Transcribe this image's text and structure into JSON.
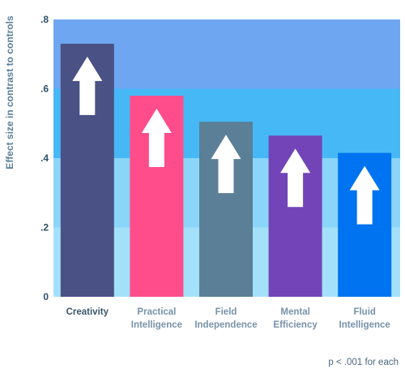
{
  "chart_data": {
    "type": "bar",
    "ylabel": "Effect size in contrast to controls",
    "ylim": [
      0,
      0.8
    ],
    "yticks": [
      {
        "value": 0,
        "label": "0"
      },
      {
        "value": 0.2,
        "label": ".2"
      },
      {
        "value": 0.4,
        "label": ".4"
      },
      {
        "value": 0.6,
        "label": ".6"
      },
      {
        "value": 0.8,
        "label": ".8"
      }
    ],
    "categories": [
      {
        "lines": [
          "Creativity"
        ],
        "value": 0.73,
        "color": "#4a5185"
      },
      {
        "lines": [
          "Practical",
          "Intelligence"
        ],
        "value": 0.58,
        "color": "#ff4d8b"
      },
      {
        "lines": [
          "Field",
          "Independence"
        ],
        "value": 0.505,
        "color": "#5b7f96"
      },
      {
        "lines": [
          "Mental",
          "Efficiency"
        ],
        "value": 0.465,
        "color": "#7244b8"
      },
      {
        "lines": [
          "Fluid",
          "Intelligence"
        ],
        "value": 0.415,
        "color": "#0073f0"
      }
    ],
    "background_bands": [
      {
        "from": 0,
        "to": 0.2,
        "color": "#a3e1fa"
      },
      {
        "from": 0.2,
        "to": 0.4,
        "color": "#8bd5f8"
      },
      {
        "from": 0.4,
        "to": 0.6,
        "color": "#46b8f6"
      },
      {
        "from": 0.6,
        "to": 0.8,
        "color": "#6ea6f1"
      }
    ],
    "bar_marker": "up-arrow-icon",
    "grid": false,
    "legend": "none"
  },
  "footnote": "p < .001 for each"
}
